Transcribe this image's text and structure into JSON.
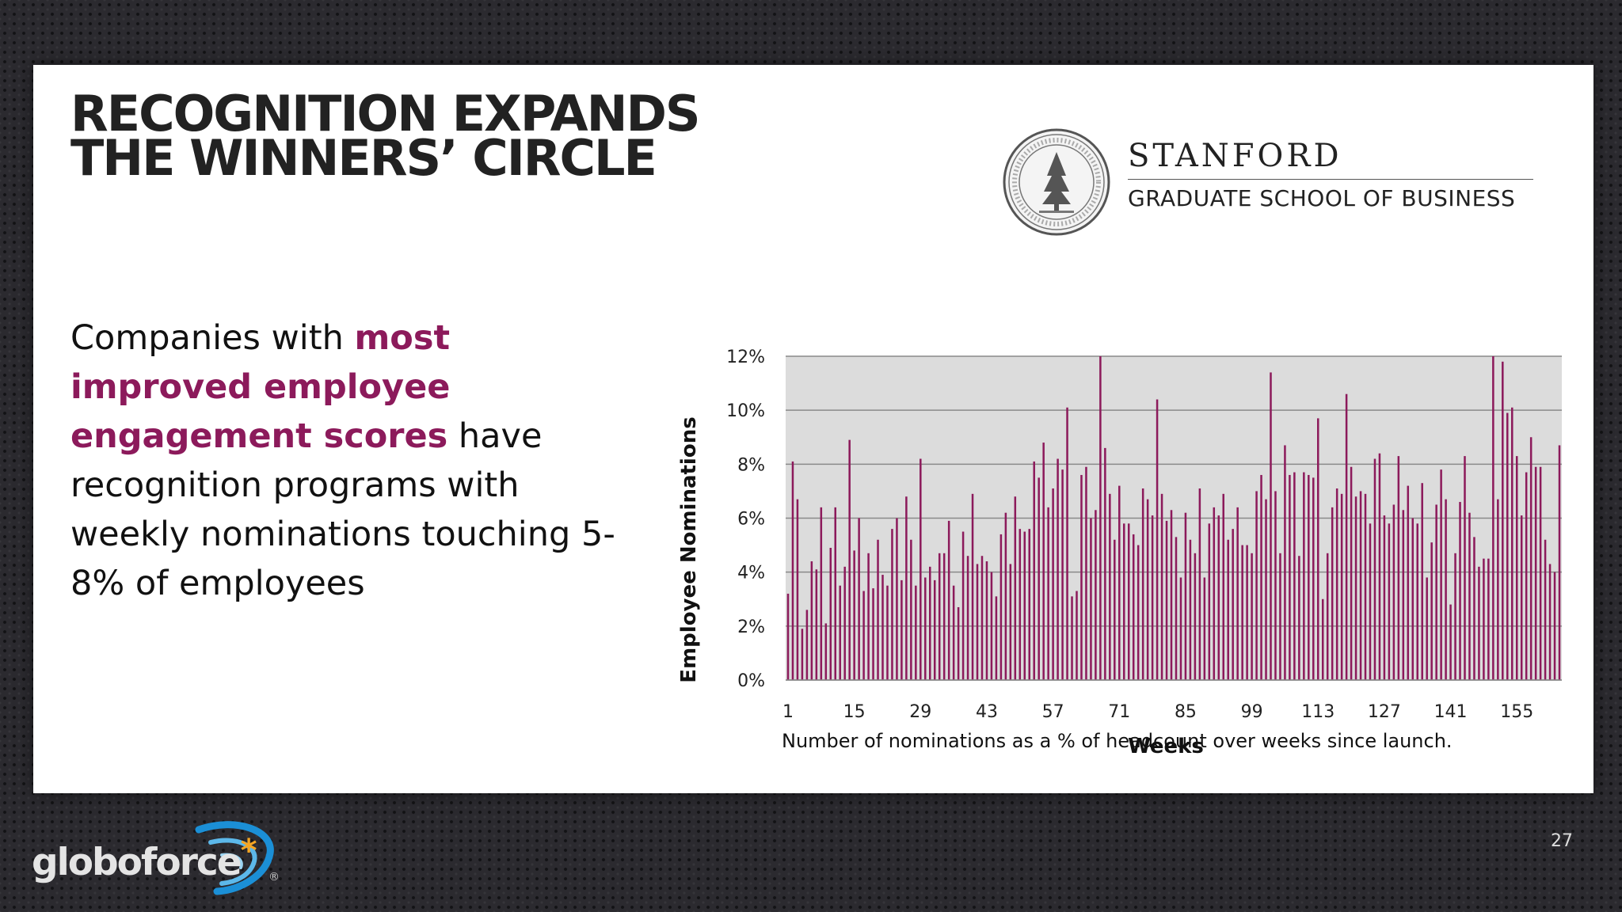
{
  "slide": {
    "title_lines": [
      "RECOGNITION EXPANDS",
      "THE WINNERS’ CIRCLE"
    ],
    "body": {
      "lead": "Companies with ",
      "highlight": "most improved employee engagement scores",
      "rest": "  have recognition programs with weekly nominations touching 5-8% of employees"
    },
    "caption": "Number of nominations as a % of headcount over weeks since launch.",
    "page_number": "27",
    "highlight_color": "#8c1a5b"
  },
  "stanford": {
    "name": "STANFORD",
    "subtitle": "GRADUATE SCHOOL OF BUSINESS",
    "seal_icon": "stanford-seal-icon"
  },
  "brand": {
    "name": "globoforce",
    "mark": "*",
    "logo_icon": "globoforce-swoosh-icon",
    "registered": "®"
  },
  "chart_data": {
    "type": "bar",
    "xlabel": "Weeks",
    "ylabel": "Employee Nominations",
    "ylim": [
      0,
      12
    ],
    "y_ticks": [
      "0%",
      "2%",
      "4%",
      "6%",
      "8%",
      "10%",
      "12%"
    ],
    "x_ticks": [
      1,
      15,
      29,
      43,
      57,
      71,
      85,
      99,
      113,
      127,
      141,
      155
    ],
    "bar_color": "#8c1a5b",
    "plot_background": "#dcdcdc",
    "grid": true,
    "x": [
      1,
      2,
      3,
      4,
      5,
      6,
      7,
      8,
      9,
      10,
      11,
      12,
      13,
      14,
      15,
      16,
      17,
      18,
      19,
      20,
      21,
      22,
      23,
      24,
      25,
      26,
      27,
      28,
      29,
      30,
      31,
      32,
      33,
      34,
      35,
      36,
      37,
      38,
      39,
      40,
      41,
      42,
      43,
      44,
      45,
      46,
      47,
      48,
      49,
      50,
      51,
      52,
      53,
      54,
      55,
      56,
      57,
      58,
      59,
      60,
      61,
      62,
      63,
      64,
      65,
      66,
      67,
      68,
      69,
      70,
      71,
      72,
      73,
      74,
      75,
      76,
      77,
      78,
      79,
      80,
      81,
      82,
      83,
      84,
      85,
      86,
      87,
      88,
      89,
      90,
      91,
      92,
      93,
      94,
      95,
      96,
      97,
      98,
      99,
      100,
      101,
      102,
      103,
      104,
      105,
      106,
      107,
      108,
      109,
      110,
      111,
      112,
      113,
      114,
      115,
      116,
      117,
      118,
      119,
      120,
      121,
      122,
      123,
      124,
      125,
      126,
      127,
      128,
      129,
      130,
      131,
      132,
      133,
      134,
      135,
      136,
      137,
      138,
      139,
      140,
      141,
      142,
      143,
      144,
      145,
      146,
      147,
      148,
      149,
      150,
      151,
      152,
      153,
      154,
      155,
      156,
      157,
      158,
      159,
      160,
      161,
      162,
      163,
      164
    ],
    "values": [
      3.2,
      8.1,
      6.7,
      1.9,
      2.6,
      4.4,
      4.1,
      6.4,
      2.1,
      4.9,
      6.4,
      3.5,
      4.2,
      8.9,
      4.8,
      6.0,
      3.3,
      4.7,
      3.4,
      5.2,
      3.9,
      3.5,
      5.6,
      6.0,
      3.7,
      6.8,
      5.2,
      3.5,
      8.2,
      3.8,
      4.2,
      3.7,
      4.7,
      4.7,
      5.9,
      3.5,
      2.7,
      5.5,
      4.6,
      6.9,
      4.3,
      4.6,
      4.4,
      4.0,
      3.1,
      5.4,
      6.2,
      4.3,
      6.8,
      5.6,
      5.5,
      5.6,
      8.1,
      7.5,
      8.8,
      6.4,
      7.1,
      8.2,
      7.8,
      10.1,
      3.1,
      3.3,
      7.6,
      7.9,
      6.0,
      6.3,
      12.0,
      8.6,
      6.9,
      5.2,
      7.2,
      5.8,
      5.8,
      5.4,
      5.0,
      7.1,
      6.7,
      6.1,
      10.4,
      6.9,
      5.9,
      6.3,
      5.3,
      3.8,
      6.2,
      5.2,
      4.7,
      7.1,
      3.8,
      5.8,
      6.4,
      6.1,
      6.9,
      5.2,
      5.6,
      6.4,
      5.0,
      5.0,
      4.7,
      7.0,
      7.6,
      6.7,
      11.4,
      7.0,
      4.7,
      8.7,
      7.6,
      7.7,
      4.6,
      7.7,
      7.6,
      7.5,
      9.7,
      3.0,
      4.7,
      6.4,
      7.1,
      6.9,
      10.6,
      7.9,
      6.8,
      7.0,
      6.9,
      5.8,
      8.2,
      8.4,
      6.1,
      5.8,
      6.5,
      8.3,
      6.3,
      7.2,
      6.0,
      5.8,
      7.3,
      3.8,
      5.1,
      6.5,
      7.8,
      6.7,
      2.8,
      4.7,
      6.6,
      8.3,
      6.2,
      5.3,
      4.2,
      4.5,
      4.5,
      12.0,
      6.7,
      11.8,
      9.9,
      10.1,
      8.3,
      6.1,
      7.7,
      9.0,
      7.9,
      7.9,
      5.2,
      4.3,
      4.0,
      8.7
    ]
  }
}
